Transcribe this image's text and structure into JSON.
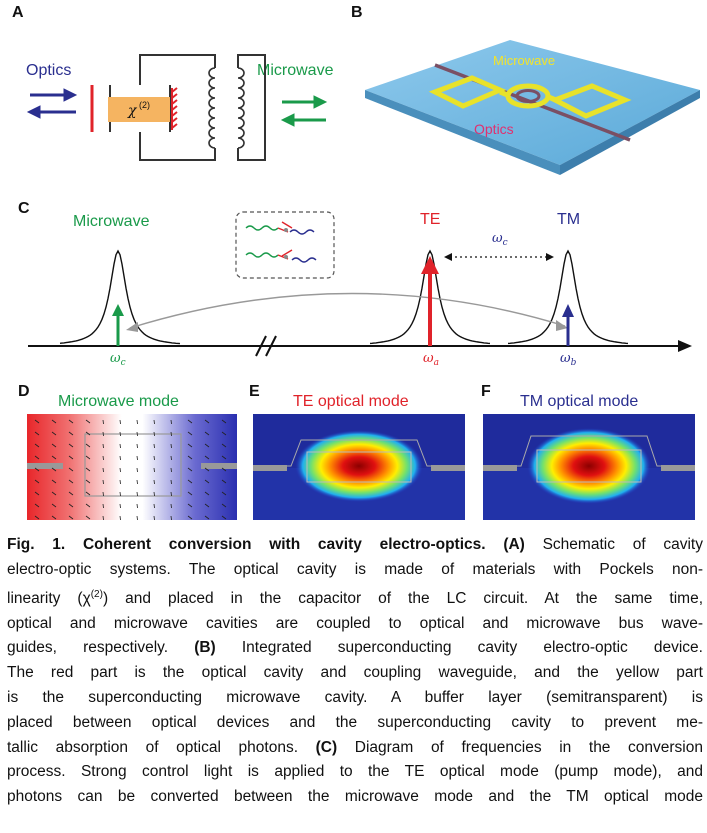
{
  "panel_labels": {
    "a": "A",
    "b": "B",
    "c": "C",
    "d": "D",
    "e": "E",
    "f": "F"
  },
  "panel_a": {
    "optics_label": "Optics",
    "microwave_label": "Microwave",
    "chi_label": "χ",
    "chi_sup": "(2)"
  },
  "panel_b": {
    "microwave_label": "Microwave",
    "optics_label": "Optics"
  },
  "panel_c": {
    "microwave_label": "Microwave",
    "te_label": "TE",
    "tm_label": "TM",
    "omega_c_top": "ω",
    "omega_c_top_sub": "c",
    "axis_labels": [
      {
        "sym": "ω",
        "sub": "c"
      },
      {
        "sym": "ω",
        "sub": "a"
      },
      {
        "sym": "ω",
        "sub": "b"
      }
    ]
  },
  "panel_d": {
    "title": "Microwave mode"
  },
  "panel_e": {
    "title": "TE optical mode"
  },
  "panel_f": {
    "title": "TM optical mode"
  },
  "caption": {
    "lines": [
      [
        "Fig. 1.  Coherent conversion with cavity electro-optics. ",
        "(A)",
        " Schematic of cavity"
      ],
      [
        "electro-optic systems. The optical cavity is made of materials with Pockels non-"
      ],
      [
        "linearity (χ",
        "(2)",
        ") and placed in the capacitor of the LC circuit. At the same time,"
      ],
      [
        "optical and microwave cavities are coupled to optical and microwave bus wave-"
      ],
      [
        "guides, respectively. ",
        "(B)",
        " Integrated superconducting cavity electro-optic device."
      ],
      [
        "The red part is the optical cavity and coupling waveguide, and the yellow part"
      ],
      [
        "is the superconducting microwave cavity. A buffer layer (semitransparent) is"
      ],
      [
        "placed between optical devices and the superconducting cavity to prevent me-"
      ],
      [
        "tallic absorption of optical photons. ",
        "(C)",
        " Diagram of frequencies in the conversion"
      ],
      [
        "process. Strong control light is applied to the TE optical mode (pump mode), and"
      ],
      [
        "photons can be converted between the microwave mode and the TM optical mode"
      ]
    ]
  }
}
